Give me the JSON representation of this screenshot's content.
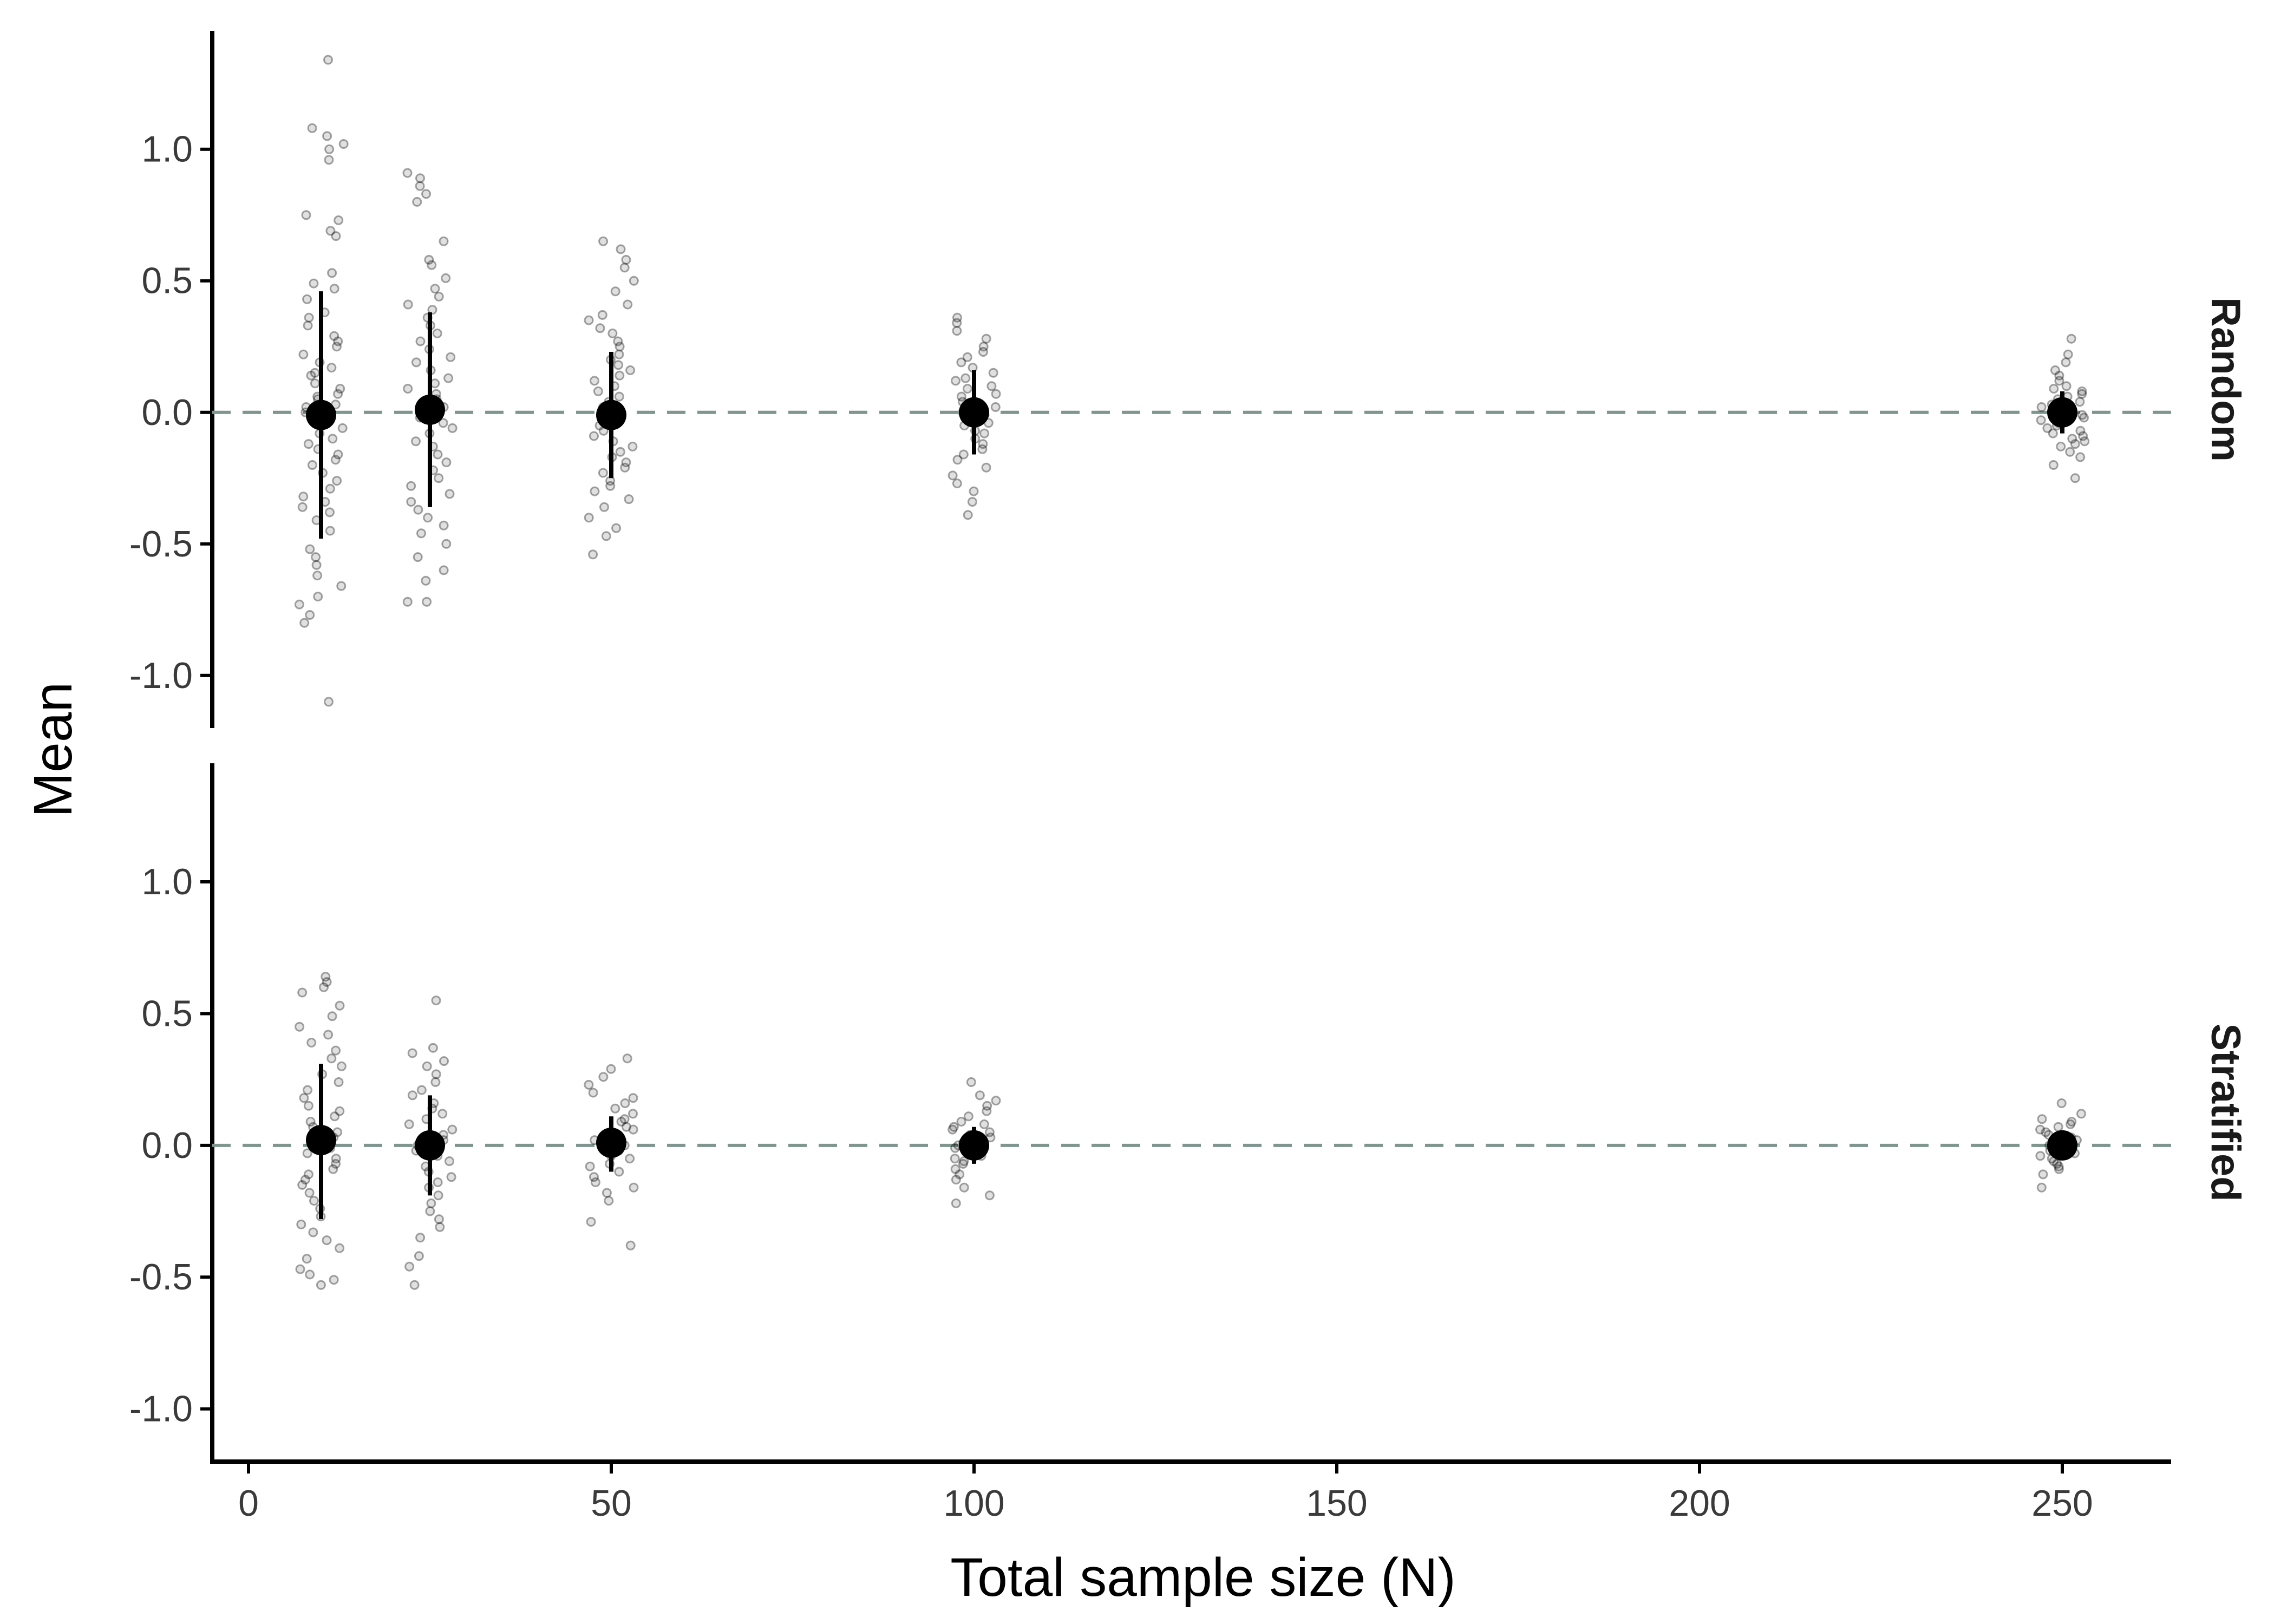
{
  "chart_data": {
    "type": "scatter",
    "xlabel": "Total sample size (N)",
    "ylabel": "Mean",
    "xlim": [
      -5,
      265
    ],
    "ylim": [
      -1.2,
      1.45
    ],
    "x_ticks": [
      0,
      50,
      100,
      150,
      200,
      250
    ],
    "x_tick_labels": [
      "0",
      "50",
      "100",
      "150",
      "200",
      "250"
    ],
    "y_ticks": [
      -1.0,
      -0.5,
      0.0,
      0.5,
      1.0
    ],
    "y_tick_labels": [
      "-1.0",
      "-0.5",
      "0.0",
      "0.5",
      "1.0"
    ],
    "reference_line": {
      "y": 0.0,
      "style": "dashed",
      "color": "#7f968f"
    },
    "colors": {
      "points": "#000000",
      "summary": "#000000",
      "reference": "#7f968f"
    },
    "panels": [
      {
        "label": "Random",
        "summary": [
          {
            "x": 10,
            "mean": -0.01,
            "lo": -0.48,
            "hi": 0.46
          },
          {
            "x": 25,
            "mean": 0.01,
            "lo": -0.36,
            "hi": 0.38
          },
          {
            "x": 50,
            "mean": -0.01,
            "lo": -0.25,
            "hi": 0.23
          },
          {
            "x": 100,
            "mean": 0.0,
            "lo": -0.16,
            "hi": 0.16
          },
          {
            "x": 250,
            "mean": 0.0,
            "lo": -0.08,
            "hi": 0.08
          }
        ],
        "points": [
          {
            "x": 10,
            "y": [
              1.34,
              1.08,
              1.05,
              1.02,
              1.0,
              0.96,
              0.75,
              0.73,
              0.69,
              0.67,
              0.53,
              0.49,
              0.47,
              0.43,
              0.38,
              0.36,
              0.33,
              0.29,
              0.27,
              0.25,
              0.22,
              0.19,
              0.17,
              0.15,
              0.14,
              0.11,
              0.09,
              0.07,
              0.06,
              0.05,
              0.03,
              0.02,
              0.0,
              -0.01,
              -0.03,
              -0.05,
              -0.06,
              -0.08,
              -0.1,
              -0.12,
              -0.14,
              -0.16,
              -0.18,
              -0.2,
              -0.23,
              -0.26,
              -0.29,
              -0.32,
              -0.34,
              -0.36,
              -0.38,
              -0.41,
              -0.45,
              -0.52,
              -0.55,
              -0.58,
              -0.62,
              -0.66,
              -0.7,
              -0.73,
              -0.77,
              -0.8,
              -1.1
            ]
          },
          {
            "x": 25,
            "y": [
              0.91,
              0.89,
              0.86,
              0.83,
              0.8,
              0.65,
              0.58,
              0.56,
              0.51,
              0.47,
              0.44,
              0.41,
              0.39,
              0.36,
              0.33,
              0.3,
              0.27,
              0.24,
              0.21,
              0.19,
              0.16,
              0.13,
              0.11,
              0.09,
              0.07,
              0.05,
              0.03,
              0.02,
              0.0,
              -0.02,
              -0.04,
              -0.06,
              -0.08,
              -0.11,
              -0.13,
              -0.16,
              -0.19,
              -0.22,
              -0.25,
              -0.28,
              -0.31,
              -0.34,
              -0.37,
              -0.4,
              -0.43,
              -0.46,
              -0.5,
              -0.55,
              -0.6,
              -0.64,
              -0.72,
              -0.72
            ]
          },
          {
            "x": 50,
            "y": [
              0.65,
              0.62,
              0.58,
              0.55,
              0.5,
              0.46,
              0.41,
              0.37,
              0.35,
              0.32,
              0.3,
              0.27,
              0.25,
              0.22,
              0.2,
              0.18,
              0.16,
              0.14,
              0.12,
              0.1,
              0.08,
              0.06,
              0.04,
              0.02,
              0.01,
              -0.01,
              -0.03,
              -0.05,
              -0.07,
              -0.09,
              -0.11,
              -0.13,
              -0.15,
              -0.17,
              -0.19,
              -0.21,
              -0.23,
              -0.26,
              -0.28,
              -0.3,
              -0.33,
              -0.36,
              -0.4,
              -0.44,
              -0.47,
              -0.54
            ]
          },
          {
            "x": 100,
            "y": [
              0.36,
              0.34,
              0.31,
              0.28,
              0.25,
              0.23,
              0.21,
              0.19,
              0.17,
              0.15,
              0.13,
              0.12,
              0.1,
              0.09,
              0.07,
              0.06,
              0.04,
              0.03,
              0.02,
              0.0,
              -0.01,
              -0.02,
              -0.04,
              -0.05,
              -0.07,
              -0.08,
              -0.1,
              -0.12,
              -0.14,
              -0.16,
              -0.18,
              -0.21,
              -0.24,
              -0.27,
              -0.3,
              -0.34,
              -0.39
            ]
          },
          {
            "x": 250,
            "y": [
              0.28,
              0.22,
              0.19,
              0.16,
              0.14,
              0.12,
              0.1,
              0.09,
              0.08,
              0.07,
              0.06,
              0.05,
              0.04,
              0.03,
              0.02,
              0.01,
              0.0,
              -0.01,
              -0.02,
              -0.03,
              -0.04,
              -0.05,
              -0.06,
              -0.07,
              -0.08,
              -0.09,
              -0.1,
              -0.11,
              -0.12,
              -0.13,
              -0.15,
              -0.17,
              -0.2,
              -0.25
            ]
          }
        ]
      },
      {
        "label": "Stratified",
        "summary": [
          {
            "x": 10,
            "mean": 0.02,
            "lo": -0.28,
            "hi": 0.31
          },
          {
            "x": 25,
            "mean": 0.0,
            "lo": -0.19,
            "hi": 0.19
          },
          {
            "x": 50,
            "mean": 0.01,
            "lo": -0.1,
            "hi": 0.11
          },
          {
            "x": 100,
            "mean": 0.0,
            "lo": -0.07,
            "hi": 0.07
          },
          {
            "x": 250,
            "mean": 0.0,
            "lo": -0.04,
            "hi": 0.04
          }
        ],
        "points": [
          {
            "x": 10,
            "y": [
              0.64,
              0.62,
              0.6,
              0.58,
              0.53,
              0.49,
              0.45,
              0.42,
              0.39,
              0.36,
              0.33,
              0.3,
              0.27,
              0.24,
              0.21,
              0.18,
              0.15,
              0.13,
              0.11,
              0.09,
              0.07,
              0.05,
              0.03,
              0.01,
              -0.01,
              -0.03,
              -0.05,
              -0.07,
              -0.09,
              -0.11,
              -0.13,
              -0.15,
              -0.18,
              -0.21,
              -0.24,
              -0.27,
              -0.3,
              -0.33,
              -0.36,
              -0.39,
              -0.43,
              -0.47,
              -0.49,
              -0.51,
              -0.53
            ]
          },
          {
            "x": 25,
            "y": [
              0.55,
              0.37,
              0.35,
              0.32,
              0.3,
              0.27,
              0.24,
              0.21,
              0.19,
              0.16,
              0.14,
              0.12,
              0.1,
              0.08,
              0.06,
              0.04,
              0.02,
              0.0,
              -0.02,
              -0.04,
              -0.06,
              -0.08,
              -0.1,
              -0.12,
              -0.14,
              -0.16,
              -0.19,
              -0.22,
              -0.25,
              -0.28,
              -0.31,
              -0.35,
              -0.42,
              -0.46,
              -0.53
            ]
          },
          {
            "x": 50,
            "y": [
              0.33,
              0.29,
              0.26,
              0.23,
              0.2,
              0.18,
              0.16,
              0.14,
              0.12,
              0.1,
              0.09,
              0.07,
              0.06,
              0.04,
              0.03,
              0.02,
              0.0,
              -0.01,
              -0.02,
              -0.04,
              -0.05,
              -0.07,
              -0.08,
              -0.1,
              -0.12,
              -0.14,
              -0.16,
              -0.18,
              -0.21,
              -0.29,
              -0.38
            ]
          },
          {
            "x": 100,
            "y": [
              0.24,
              0.19,
              0.17,
              0.15,
              0.13,
              0.11,
              0.09,
              0.08,
              0.07,
              0.06,
              0.05,
              0.04,
              0.03,
              0.02,
              0.01,
              0.0,
              -0.01,
              -0.02,
              -0.03,
              -0.04,
              -0.05,
              -0.06,
              -0.07,
              -0.09,
              -0.11,
              -0.13,
              -0.16,
              -0.19,
              -0.22
            ]
          },
          {
            "x": 250,
            "y": [
              0.16,
              0.12,
              0.1,
              0.09,
              0.08,
              0.07,
              0.06,
              0.05,
              0.04,
              0.03,
              0.02,
              0.01,
              0.0,
              -0.01,
              -0.02,
              -0.03,
              -0.04,
              -0.05,
              -0.06,
              -0.07,
              -0.08,
              -0.09,
              -0.11,
              -0.16
            ]
          }
        ]
      }
    ]
  }
}
